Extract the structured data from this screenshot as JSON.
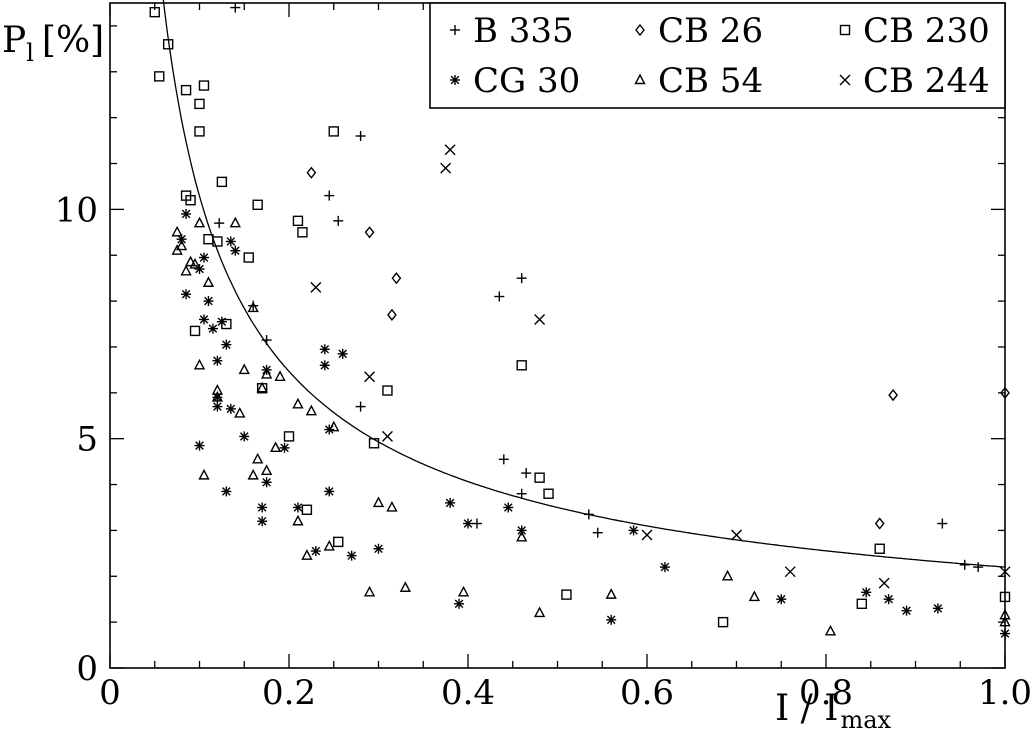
{
  "chart_data": {
    "type": "scatter",
    "xlabel": "I / I",
    "xlabel_sub": "max",
    "ylabel": "P",
    "ylabel_sub": "l",
    "ylabel_unit": "[%]",
    "xlim": [
      0,
      1.0
    ],
    "ylim": [
      0,
      14.5
    ],
    "x_ticks": [
      0,
      0.2,
      0.4,
      0.6,
      0.8,
      1.0
    ],
    "x_tick_labels": [
      "0",
      "0.2",
      "0.4",
      "0.6",
      "0.8",
      "1.0"
    ],
    "y_ticks": [
      0,
      5,
      10
    ],
    "y_tick_labels": [
      "0",
      "5",
      "10"
    ],
    "grid": false,
    "legend_position": "top-right",
    "legend_columns": 3,
    "fit_curve": {
      "type": "power",
      "a": 2.2,
      "b": -0.67,
      "x_range": [
        0.035,
        1.0
      ]
    },
    "series": [
      {
        "name": "B 335",
        "marker": "plus",
        "points": [
          [
            0.14,
            14.4
          ],
          [
            0.28,
            11.6
          ],
          [
            0.245,
            10.3
          ],
          [
            0.255,
            9.75
          ],
          [
            0.122,
            9.7
          ],
          [
            0.16,
            7.9
          ],
          [
            0.175,
            7.15
          ],
          [
            0.28,
            5.7
          ],
          [
            0.435,
            8.1
          ],
          [
            0.46,
            8.5
          ],
          [
            0.44,
            4.55
          ],
          [
            0.465,
            4.25
          ],
          [
            0.46,
            3.8
          ],
          [
            0.41,
            3.15
          ],
          [
            0.535,
            3.35
          ],
          [
            0.545,
            2.95
          ],
          [
            0.93,
            3.15
          ],
          [
            0.955,
            2.25
          ],
          [
            0.97,
            2.2
          ]
        ]
      },
      {
        "name": "CB 26",
        "marker": "diamond",
        "points": [
          [
            0.225,
            10.8
          ],
          [
            0.29,
            9.5
          ],
          [
            0.32,
            8.5
          ],
          [
            0.315,
            7.7
          ],
          [
            0.875,
            5.95
          ],
          [
            0.86,
            3.15
          ],
          [
            1.0,
            6.0
          ]
        ]
      },
      {
        "name": "CB 230",
        "marker": "square",
        "points": [
          [
            0.05,
            14.3
          ],
          [
            0.065,
            13.6
          ],
          [
            0.055,
            12.9
          ],
          [
            0.085,
            12.6
          ],
          [
            0.105,
            12.7
          ],
          [
            0.1,
            12.3
          ],
          [
            0.1,
            11.7
          ],
          [
            0.25,
            11.7
          ],
          [
            0.125,
            10.6
          ],
          [
            0.085,
            10.3
          ],
          [
            0.09,
            10.2
          ],
          [
            0.165,
            10.1
          ],
          [
            0.21,
            9.75
          ],
          [
            0.215,
            9.5
          ],
          [
            0.11,
            9.35
          ],
          [
            0.12,
            9.3
          ],
          [
            0.155,
            8.95
          ],
          [
            0.095,
            7.35
          ],
          [
            0.13,
            7.5
          ],
          [
            0.46,
            6.6
          ],
          [
            0.31,
            6.05
          ],
          [
            0.17,
            6.1
          ],
          [
            0.2,
            5.05
          ],
          [
            0.295,
            4.9
          ],
          [
            0.48,
            4.15
          ],
          [
            0.49,
            3.8
          ],
          [
            0.22,
            3.45
          ],
          [
            0.255,
            2.75
          ],
          [
            0.86,
            2.6
          ],
          [
            0.51,
            1.6
          ],
          [
            0.84,
            1.4
          ],
          [
            0.685,
            1.0
          ],
          [
            1.0,
            1.55
          ]
        ]
      },
      {
        "name": "CG 30",
        "marker": "asterisk",
        "points": [
          [
            0.085,
            9.9
          ],
          [
            0.08,
            9.35
          ],
          [
            0.105,
            8.95
          ],
          [
            0.1,
            8.7
          ],
          [
            0.085,
            8.15
          ],
          [
            0.11,
            8.0
          ],
          [
            0.135,
            9.3
          ],
          [
            0.14,
            9.1
          ],
          [
            0.105,
            7.6
          ],
          [
            0.125,
            7.55
          ],
          [
            0.115,
            7.4
          ],
          [
            0.13,
            7.05
          ],
          [
            0.12,
            6.7
          ],
          [
            0.24,
            6.95
          ],
          [
            0.26,
            6.85
          ],
          [
            0.24,
            6.6
          ],
          [
            0.175,
            6.5
          ],
          [
            0.12,
            5.9
          ],
          [
            0.12,
            5.7
          ],
          [
            0.135,
            5.65
          ],
          [
            0.245,
            5.2
          ],
          [
            0.15,
            5.05
          ],
          [
            0.1,
            4.85
          ],
          [
            0.195,
            4.8
          ],
          [
            0.175,
            4.05
          ],
          [
            0.13,
            3.85
          ],
          [
            0.17,
            3.5
          ],
          [
            0.17,
            3.2
          ],
          [
            0.21,
            3.5
          ],
          [
            0.245,
            3.85
          ],
          [
            0.38,
            3.6
          ],
          [
            0.445,
            3.5
          ],
          [
            0.46,
            3.0
          ],
          [
            0.4,
            3.15
          ],
          [
            0.585,
            3.0
          ],
          [
            0.3,
            2.6
          ],
          [
            0.23,
            2.55
          ],
          [
            0.27,
            2.45
          ],
          [
            0.39,
            1.4
          ],
          [
            0.56,
            1.05
          ],
          [
            0.62,
            2.2
          ],
          [
            0.75,
            1.5
          ],
          [
            0.845,
            1.65
          ],
          [
            0.87,
            1.5
          ],
          [
            0.89,
            1.25
          ],
          [
            0.925,
            1.3
          ],
          [
            1.0,
            0.75
          ]
        ]
      },
      {
        "name": "CB 54",
        "marker": "triangle",
        "points": [
          [
            0.075,
            9.5
          ],
          [
            0.1,
            9.7
          ],
          [
            0.08,
            9.2
          ],
          [
            0.075,
            9.1
          ],
          [
            0.09,
            8.85
          ],
          [
            0.085,
            8.65
          ],
          [
            0.095,
            8.8
          ],
          [
            0.11,
            8.4
          ],
          [
            0.14,
            9.7
          ],
          [
            0.16,
            7.85
          ],
          [
            0.1,
            6.6
          ],
          [
            0.15,
            6.5
          ],
          [
            0.175,
            6.4
          ],
          [
            0.19,
            6.35
          ],
          [
            0.12,
            6.05
          ],
          [
            0.12,
            5.9
          ],
          [
            0.17,
            6.1
          ],
          [
            0.21,
            5.75
          ],
          [
            0.145,
            5.55
          ],
          [
            0.225,
            5.6
          ],
          [
            0.25,
            5.25
          ],
          [
            0.165,
            4.55
          ],
          [
            0.175,
            4.3
          ],
          [
            0.16,
            4.2
          ],
          [
            0.105,
            4.2
          ],
          [
            0.185,
            4.8
          ],
          [
            0.3,
            3.6
          ],
          [
            0.315,
            3.5
          ],
          [
            0.21,
            3.2
          ],
          [
            0.46,
            2.85
          ],
          [
            0.245,
            2.65
          ],
          [
            0.22,
            2.45
          ],
          [
            0.29,
            1.65
          ],
          [
            0.33,
            1.75
          ],
          [
            0.395,
            1.65
          ],
          [
            0.48,
            1.2
          ],
          [
            0.56,
            1.6
          ],
          [
            0.69,
            2.0
          ],
          [
            0.72,
            1.55
          ],
          [
            0.805,
            0.8
          ],
          [
            1.0,
            1.15
          ],
          [
            1.0,
            1.0
          ]
        ]
      },
      {
        "name": "CB 244",
        "marker": "cross",
        "points": [
          [
            0.38,
            11.3
          ],
          [
            0.375,
            10.9
          ],
          [
            0.23,
            8.3
          ],
          [
            0.48,
            7.6
          ],
          [
            0.29,
            6.35
          ],
          [
            0.31,
            5.05
          ],
          [
            0.6,
            2.9
          ],
          [
            0.7,
            2.9
          ],
          [
            0.76,
            2.1
          ],
          [
            0.865,
            1.85
          ],
          [
            1.0,
            2.1
          ]
        ]
      }
    ]
  }
}
